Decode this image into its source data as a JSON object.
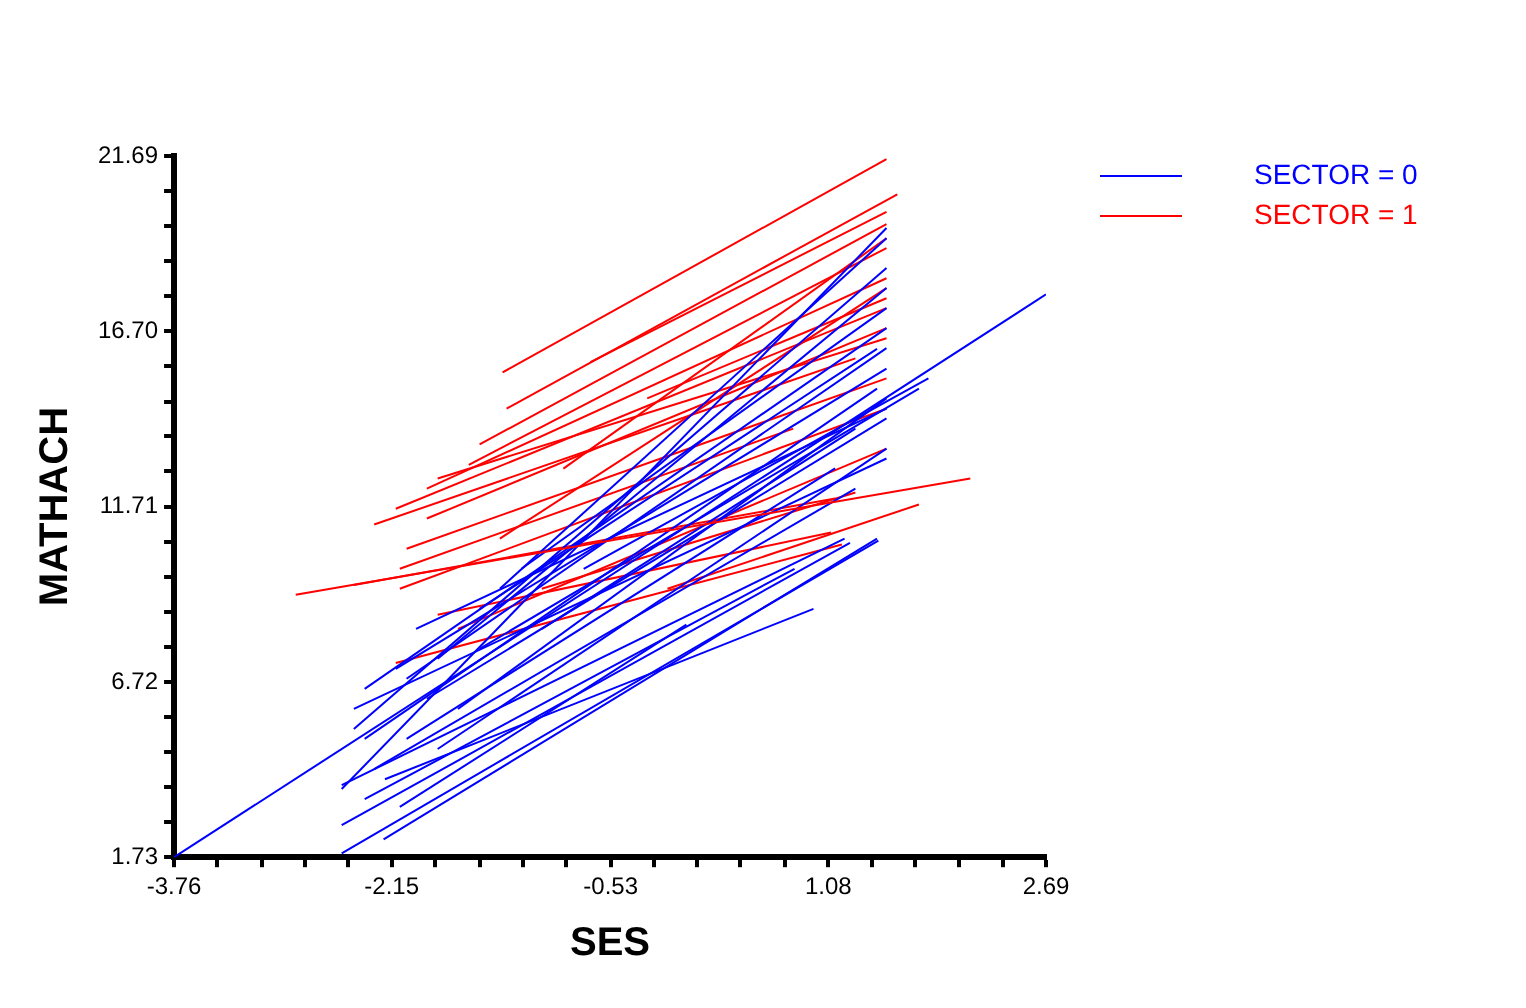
{
  "chart_data": {
    "type": "line",
    "xlabel": "SES",
    "ylabel": "MATHACH",
    "xlim": [
      -3.76,
      2.69
    ],
    "ylim": [
      1.73,
      21.69
    ],
    "xticks": [
      -3.76,
      {
        "value": -3.44,
        "label": null
      },
      {
        "value": -3.11,
        "label": null
      },
      {
        "value": -2.79,
        "label": null
      },
      {
        "value": -2.47,
        "label": null
      },
      -2.15,
      {
        "value": -1.83,
        "label": null
      },
      {
        "value": -1.5,
        "label": null
      },
      {
        "value": -1.18,
        "label": null
      },
      {
        "value": -0.86,
        "label": null
      },
      -0.53,
      {
        "value": -0.21,
        "label": null
      },
      {
        "value": 0.11,
        "label": null
      },
      {
        "value": 0.43,
        "label": null
      },
      {
        "value": 0.76,
        "label": null
      },
      1.08,
      {
        "value": 1.4,
        "label": null
      },
      {
        "value": 1.72,
        "label": null
      },
      {
        "value": 2.05,
        "label": null
      },
      {
        "value": 2.37,
        "label": null
      },
      2.69
    ],
    "yticks": [
      1.73,
      {
        "value": 2.73,
        "label": null
      },
      {
        "value": 3.73,
        "label": null
      },
      {
        "value": 4.72,
        "label": null
      },
      {
        "value": 5.72,
        "label": null
      },
      6.72,
      {
        "value": 7.72,
        "label": null
      },
      {
        "value": 8.72,
        "label": null
      },
      {
        "value": 9.71,
        "label": null
      },
      {
        "value": 10.71,
        "label": null
      },
      11.71,
      {
        "value": 12.71,
        "label": null
      },
      {
        "value": 13.71,
        "label": null
      },
      {
        "value": 14.7,
        "label": null
      },
      {
        "value": 15.7,
        "label": null
      },
      {
        "value": 16.7,
        "label": "16.70"
      },
      {
        "value": 17.7,
        "label": null
      },
      {
        "value": 18.69,
        "label": null
      },
      {
        "value": 19.69,
        "label": null
      },
      {
        "value": 20.69,
        "label": null
      },
      21.69
    ],
    "legend": "top right",
    "marker": "none",
    "line_style": "solid",
    "series": [
      {
        "name": "SECTOR = 0",
        "color": "#0000ff",
        "x": [
          -3.76,
          2.69
        ],
        "values": [
          1.73,
          17.75
        ]
      },
      {
        "name": "SECTOR = 1",
        "color": "#ff0000",
        "x": [
          -2.86,
          2.13
        ],
        "values": [
          9.2,
          12.51
        ]
      },
      {
        "color": "#0000ff",
        "x": [
          -2.52,
          1.45
        ],
        "values": [
          1.84,
          10.74
        ]
      },
      {
        "color": "#0000ff",
        "x": [
          -2.21,
          1.44
        ],
        "values": [
          2.24,
          10.8
        ]
      },
      {
        "color": "#0000ff",
        "x": [
          -2.52,
          1.24
        ],
        "values": [
          2.64,
          10.68
        ]
      },
      {
        "color": "#0000ff",
        "x": [
          -2.09,
          0.03
        ],
        "values": [
          3.16,
          8.35
        ]
      },
      {
        "color": "#0000ff",
        "x": [
          -2.52,
          1.2
        ],
        "values": [
          3.78,
          10.8
        ]
      },
      {
        "color": "#0000ff",
        "x": [
          -2.35,
          0.83
        ],
        "values": [
          3.38,
          9.94
        ]
      },
      {
        "color": "#0000ff",
        "x": [
          -2.52,
          1.51
        ],
        "values": [
          3.67,
          19.64
        ]
      },
      {
        "color": "#0000ff",
        "x": [
          -2.43,
          1.51
        ],
        "values": [
          5.38,
          18.5
        ]
      },
      {
        "color": "#0000ff",
        "x": [
          -2.35,
          1.51
        ],
        "values": [
          6.52,
          16.79
        ]
      },
      {
        "color": "#0000ff",
        "x": [
          -2.12,
          1.51
        ],
        "values": [
          7.09,
          15.64
        ]
      },
      {
        "color": "#0000ff",
        "x": [
          -1.97,
          1.51
        ],
        "values": [
          8.23,
          14.5
        ]
      },
      {
        "color": "#0000ff",
        "x": [
          -1.81,
          1.51
        ],
        "values": [
          4.81,
          13.36
        ]
      },
      {
        "color": "#0000ff",
        "x": [
          -1.66,
          1.51
        ],
        "values": [
          5.95,
          14.79
        ]
      },
      {
        "color": "#0000ff",
        "x": [
          -2.28,
          1.28
        ],
        "values": [
          4.24,
          12.22
        ]
      },
      {
        "color": "#0000ff",
        "x": [
          -2.04,
          1.13
        ],
        "values": [
          5.1,
          12.8
        ]
      },
      {
        "color": "#0000ff",
        "x": [
          -1.5,
          1.44
        ],
        "values": [
          8.8,
          16.2
        ]
      },
      {
        "color": "#0000ff",
        "x": [
          -1.81,
          1.51
        ],
        "values": [
          7.38,
          17.93
        ]
      },
      {
        "color": "#0000ff",
        "x": [
          -1.35,
          1.51
        ],
        "values": [
          9.37,
          19.35
        ]
      },
      {
        "color": "#0000ff",
        "x": [
          -2.2,
          0.97
        ],
        "values": [
          3.95,
          8.8
        ]
      },
      {
        "color": "#0000ff",
        "x": [
          -1.04,
          1.28
        ],
        "values": [
          8.23,
          13.93
        ]
      },
      {
        "color": "#0000ff",
        "x": [
          -2.43,
          1.51
        ],
        "values": [
          5.95,
          13.08
        ]
      },
      {
        "color": "#0000ff",
        "x": [
          -1.19,
          1.51
        ],
        "values": [
          9.94,
          17.36
        ]
      },
      {
        "color": "#0000ff",
        "x": [
          -0.73,
          1.82
        ],
        "values": [
          9.94,
          15.36
        ]
      },
      {
        "color": "#0000ff",
        "x": [
          -1.5,
          1.75
        ],
        "values": [
          7.66,
          15.07
        ]
      },
      {
        "color": "#0000ff",
        "x": [
          -2.35,
          1.44
        ],
        "values": [
          5.1,
          15.07
        ]
      },
      {
        "color": "#0000ff",
        "x": [
          -2.04,
          1.51
        ],
        "values": [
          6.81,
          16.22
        ]
      },
      {
        "color": "#0000ff",
        "x": [
          -1.89,
          1.51
        ],
        "values": [
          6.24,
          14.22
        ]
      },
      {
        "color": "#ff0000",
        "x": [
          -1.33,
          1.51
        ],
        "values": [
          15.53,
          21.6
        ]
      },
      {
        "color": "#ff0000",
        "x": [
          -1.3,
          1.59
        ],
        "values": [
          14.5,
          20.6
        ]
      },
      {
        "color": "#ff0000",
        "x": [
          -0.68,
          1.51
        ],
        "values": [
          15.82,
          20.1
        ]
      },
      {
        "color": "#ff0000",
        "x": [
          -1.5,
          1.51
        ],
        "values": [
          13.48,
          19.75
        ]
      },
      {
        "color": "#ff0000",
        "x": [
          -1.58,
          1.51
        ],
        "values": [
          12.9,
          19.07
        ]
      },
      {
        "color": "#ff0000",
        "x": [
          -1.89,
          1.51
        ],
        "values": [
          12.22,
          18.21
        ]
      },
      {
        "color": "#ff0000",
        "x": [
          -2.12,
          1.51
        ],
        "values": [
          11.65,
          17.36
        ]
      },
      {
        "color": "#ff0000",
        "x": [
          -1.81,
          1.51
        ],
        "values": [
          12.51,
          16.5
        ]
      },
      {
        "color": "#ff0000",
        "x": [
          -2.28,
          1.28
        ],
        "values": [
          11.2,
          15.93
        ]
      },
      {
        "color": "#ff0000",
        "x": [
          -1.89,
          1.51
        ],
        "values": [
          11.37,
          16.79
        ]
      },
      {
        "color": "#ff0000",
        "x": [
          -2.04,
          1.51
        ],
        "values": [
          10.51,
          15.36
        ]
      },
      {
        "color": "#ff0000",
        "x": [
          -2.09,
          1.51
        ],
        "values": [
          9.37,
          14.5
        ]
      },
      {
        "color": "#ff0000",
        "x": [
          -2.09,
          0.82
        ],
        "values": [
          9.94,
          13.93
        ]
      },
      {
        "color": "#ff0000",
        "x": [
          -2.12,
          1.18
        ],
        "values": [
          7.26,
          10.63
        ]
      },
      {
        "color": "#ff0000",
        "x": [
          -1.81,
          1.1
        ],
        "values": [
          8.63,
          10.97
        ]
      },
      {
        "color": "#ff0000",
        "x": [
          -1.66,
          1.51
        ],
        "values": [
          8.23,
          13.36
        ]
      },
      {
        "color": "#ff0000",
        "x": [
          -1.35,
          1.51
        ],
        "values": [
          10.8,
          17.93
        ]
      },
      {
        "color": "#ff0000",
        "x": [
          -0.88,
          1.51
        ],
        "values": [
          12.79,
          19.35
        ]
      },
      {
        "color": "#ff0000",
        "x": [
          -0.26,
          1.51
        ],
        "values": [
          14.79,
          17.64
        ]
      },
      {
        "color": "#ff0000",
        "x": [
          -0.11,
          1.75
        ],
        "values": [
          9.37,
          11.77
        ]
      },
      {
        "color": "#ff0000",
        "x": [
          -1.04,
          1.28
        ],
        "values": [
          9.37,
          12.11
        ]
      },
      {
        "color": "#ff0000",
        "x": [
          -2.43,
          1.13
        ],
        "values": [
          9.48,
          11.94
        ]
      }
    ]
  }
}
